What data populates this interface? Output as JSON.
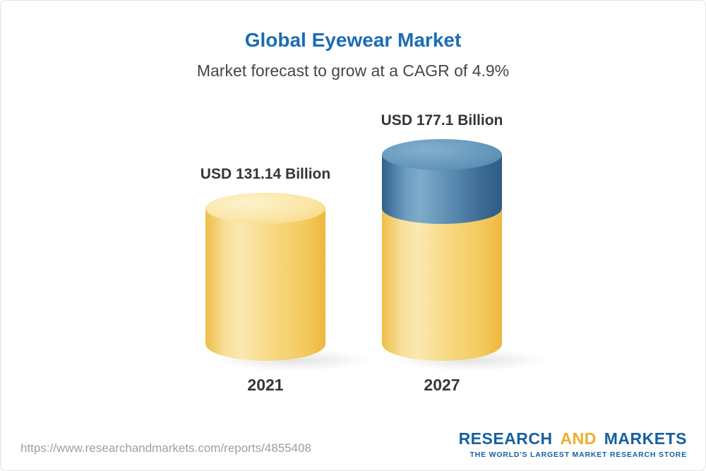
{
  "header": {
    "title": "Global Eyewear Market",
    "subtitle": "Market forecast to grow at a CAGR of 4.9%"
  },
  "chart_data": {
    "type": "bar",
    "subtype": "3d-cylinder",
    "title": "Global Eyewear Market",
    "subtitle": "Market forecast to grow at a CAGR of 4.9%",
    "cagr_percent": 4.9,
    "unit": "USD Billion",
    "categories": [
      "2021",
      "2027"
    ],
    "values": [
      131.14,
      177.1
    ],
    "value_labels": [
      "USD 131.14 Billion",
      "USD 177.1 Billion"
    ],
    "ylim": [
      0,
      177.1
    ],
    "grid": false,
    "legend": false,
    "colors": {
      "base_segment": "#f6cf64",
      "growth_segment": "#4d7fa8"
    }
  },
  "footer": {
    "url": "https://www.researchandmarkets.com/reports/4855408",
    "logo": {
      "research": "RESEARCH",
      "and": "AND",
      "markets": "MARKETS",
      "tagline": "THE WORLD'S LARGEST MARKET RESEARCH STORE"
    }
  },
  "colors": {
    "title_blue": "#1b6cb5",
    "bar_yellow": "#f6cf64",
    "bar_blue": "#4d7fa8",
    "logo_blue": "#17609f",
    "logo_orange": "#f0ad2d",
    "url_gray": "#9aa0a6"
  }
}
